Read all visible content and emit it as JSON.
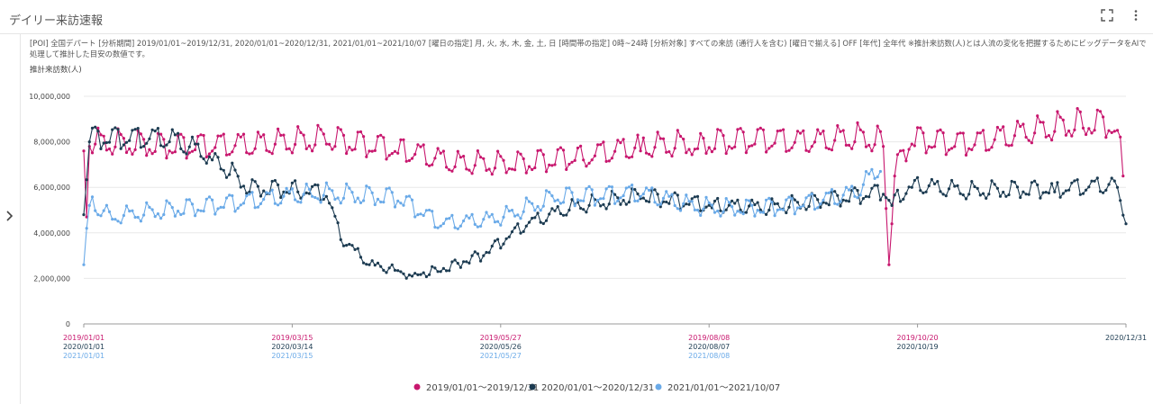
{
  "header": {
    "title": "デイリー来訪速報",
    "expand_icon": "expand-icon",
    "menu_icon": "kebab-menu-icon"
  },
  "info_text": "[POI] 全国デパート [分析期間] 2019/01/01~2019/12/31, 2020/01/01~2020/12/31, 2021/01/01~2021/10/07 [曜日の指定] 月, 火, 水, 木, 金, 土, 日 [時間帯の指定] 0時~24時 [分析対象] すべての来訪 (通行人を含む) [曜日で揃える] OFF [年代] 全年代 ※推計来訪数(人)とは人流の変化を把握するためにビッグデータをAIで処理して推計した目安の数値です。",
  "colors": {
    "s2019": "#c8176e",
    "s2020": "#1c3b51",
    "s2021": "#6aaae8"
  },
  "chart_data": {
    "type": "line",
    "ylabel": "推計来訪数(人)",
    "ylim": [
      0,
      10000000
    ],
    "yticks": [
      "0",
      "2,000,000",
      "4,000,000",
      "6,000,000",
      "8,000,000",
      "10,000,000"
    ],
    "ytick_values": [
      0,
      2000000,
      4000000,
      6000000,
      8000000,
      10000000
    ],
    "x_ticks": [
      {
        "day": 0,
        "labels": [
          "2019/01/01",
          "2020/01/01",
          "2021/01/01"
        ]
      },
      {
        "day": 73,
        "labels": [
          "2019/03/15",
          "2020/03/14",
          "2021/03/15"
        ]
      },
      {
        "day": 146,
        "labels": [
          "2019/05/27",
          "2020/05/26",
          "2021/05/27"
        ]
      },
      {
        "day": 219,
        "labels": [
          "2019/08/08",
          "2020/08/07",
          "2021/08/08"
        ]
      },
      {
        "day": 292,
        "labels": [
          "2019/10/20",
          "2020/10/19"
        ]
      },
      {
        "day": 365,
        "labels": [
          "2020/12/31"
        ]
      }
    ],
    "series": [
      {
        "name": "2019/01/01〜2019/12/31",
        "days": 365,
        "shape": {
          "base": 7500000,
          "amp": 600000,
          "anchors": [
            [
              0,
              7600000
            ],
            [
              1,
              4700000
            ],
            [
              2,
              7800000
            ],
            [
              30,
              7600000
            ],
            [
              60,
              7700000
            ],
            [
              85,
              7900000
            ],
            [
              110,
              7500000
            ],
            [
              130,
              6900000
            ],
            [
              150,
              6800000
            ],
            [
              175,
              7200000
            ],
            [
              195,
              7600000
            ],
            [
              215,
              7700000
            ],
            [
              235,
              7900000
            ],
            [
              255,
              7800000
            ],
            [
              270,
              8000000
            ],
            [
              280,
              7800000
            ],
            [
              282,
              2600000
            ],
            [
              284,
              6500000
            ],
            [
              290,
              7900000
            ],
            [
              310,
              7700000
            ],
            [
              330,
              8200000
            ],
            [
              350,
              8600000
            ],
            [
              362,
              8500000
            ],
            [
              364,
              6500000
            ]
          ]
        }
      },
      {
        "name": "2020/01/01〜2020/12/31",
        "days": 366,
        "shape": {
          "base": 7500000,
          "amp": 500000,
          "anchors": [
            [
              0,
              4800000
            ],
            [
              2,
              8000000
            ],
            [
              30,
              8000000
            ],
            [
              45,
              7200000
            ],
            [
              58,
              5800000
            ],
            [
              75,
              5800000
            ],
            [
              85,
              5600000
            ],
            [
              90,
              3700000
            ],
            [
              100,
              2600000
            ],
            [
              115,
              2100000
            ],
            [
              125,
              2300000
            ],
            [
              140,
              3000000
            ],
            [
              155,
              4300000
            ],
            [
              170,
              5000000
            ],
            [
              195,
              5500000
            ],
            [
              220,
              5100000
            ],
            [
              240,
              5000000
            ],
            [
              260,
              5300000
            ],
            [
              280,
              5700000
            ],
            [
              283,
              5200000
            ],
            [
              290,
              6000000
            ],
            [
              310,
              5700000
            ],
            [
              340,
              5800000
            ],
            [
              362,
              6000000
            ],
            [
              365,
              4400000
            ]
          ]
        }
      },
      {
        "name": "2021/01/01〜2021/10/07",
        "days": 280,
        "shape": {
          "base": 5000000,
          "amp": 400000,
          "anchors": [
            [
              0,
              2600000
            ],
            [
              2,
              5200000
            ],
            [
              10,
              4600000
            ],
            [
              40,
              5000000
            ],
            [
              80,
              5600000
            ],
            [
              110,
              5400000
            ],
            [
              125,
              4300000
            ],
            [
              145,
              4500000
            ],
            [
              165,
              5400000
            ],
            [
              195,
              5600000
            ],
            [
              215,
              5000000
            ],
            [
              230,
              4900000
            ],
            [
              250,
              5100000
            ],
            [
              270,
              5600000
            ],
            [
              279,
              6700000
            ]
          ]
        }
      }
    ]
  }
}
